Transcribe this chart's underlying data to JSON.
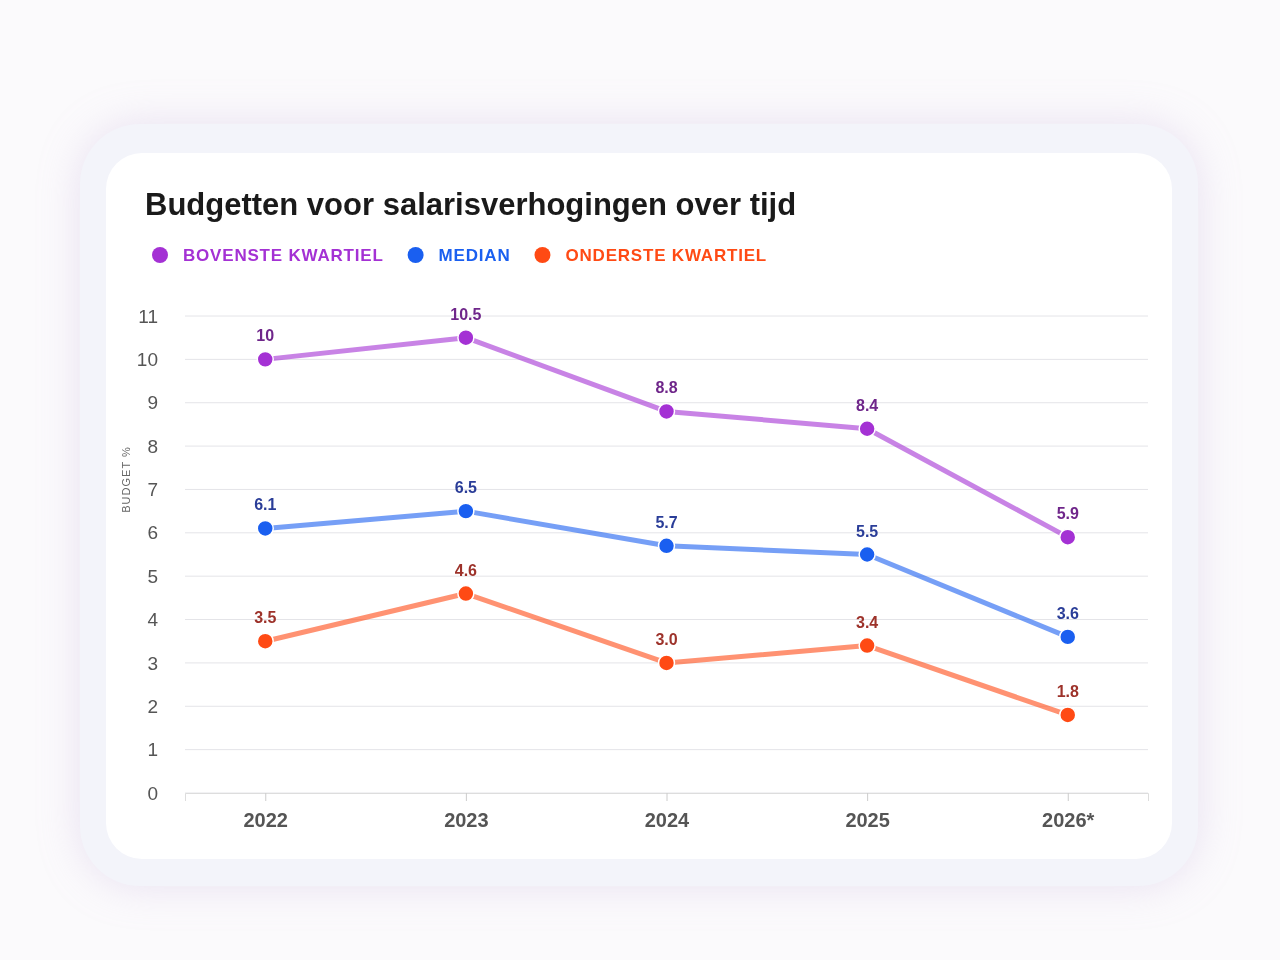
{
  "chart_data": {
    "type": "line",
    "title": "Budgetten voor salarisverhogingen over tijd",
    "ylabel": "BUDGET %",
    "categories": [
      "2022",
      "2023",
      "2024",
      "2025",
      "2026*"
    ],
    "series": [
      {
        "name": "BOVENSTE KWARTIEL",
        "color": "#a431d4",
        "values": [
          10,
          10.5,
          8.8,
          8.4,
          5.9
        ],
        "value_labels": [
          "10",
          "10.5",
          "8.8",
          "8.4",
          "5.9"
        ]
      },
      {
        "name": "MEDIAN",
        "color": "#1a5ff0",
        "values": [
          6.1,
          6.5,
          5.7,
          5.5,
          3.6
        ],
        "value_labels": [
          "6.1",
          "6.5",
          "5.7",
          "5.5",
          "3.6"
        ]
      },
      {
        "name": "ONDERSTE KWARTIEL",
        "color": "#ff4a14",
        "values": [
          3.5,
          4.6,
          3.0,
          3.4,
          1.8
        ],
        "value_labels": [
          "3.5",
          "4.6",
          "3.0",
          "3.4",
          "1.8"
        ]
      }
    ],
    "ylim": [
      0,
      11
    ],
    "yticks": [
      0,
      1,
      2,
      3,
      4,
      5,
      6,
      7,
      8,
      9,
      10,
      11
    ],
    "grid": "y",
    "legend": "top left",
    "marker": "circle",
    "line_style": "solid"
  }
}
